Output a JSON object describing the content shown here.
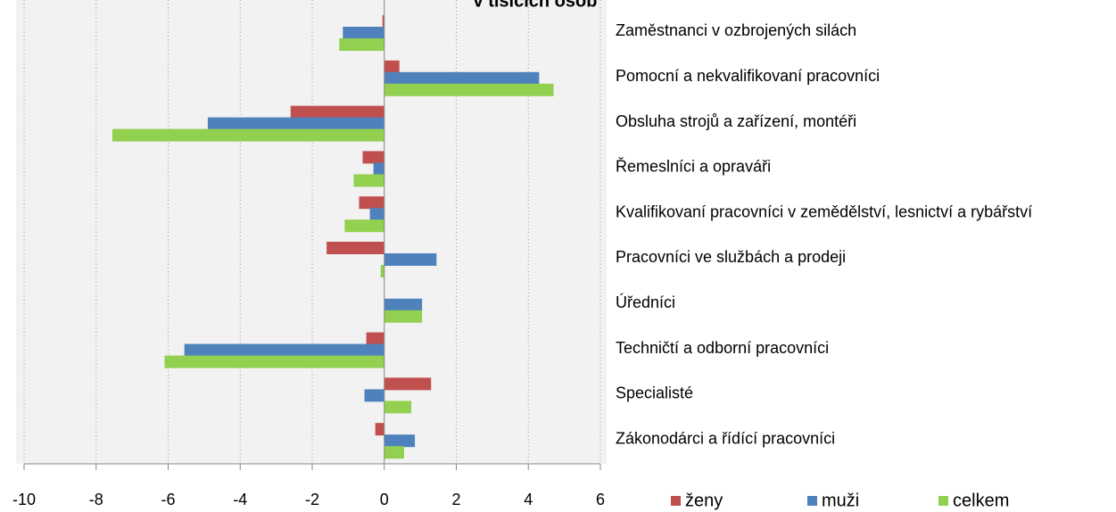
{
  "chart_data": {
    "type": "barh",
    "title": "v tisících osob",
    "categories": [
      "Zaměstnanci v ozbrojených silách",
      "Pomocní a nekvalifikovaní pracovníci",
      "Obsluha strojů a zařízení, montéři",
      "Řemeslníci a opraváři",
      "Kvalifikovaní pracovníci v zemědělství, lesnictví a rybářství",
      "Pracovníci ve službách a prodeji",
      "Úředníci",
      "Techničtí a odborní pracovníci",
      "Specialisté",
      "Zákonodárci a řídící pracovníci"
    ],
    "series": [
      {
        "name": "ženy",
        "color": "#c0504d",
        "values": [
          -0.05,
          0.42,
          -2.6,
          -0.6,
          -0.7,
          -1.6,
          0,
          -0.5,
          1.3,
          -0.25
        ]
      },
      {
        "name": "muži",
        "color": "#4f81bd",
        "values": [
          -1.15,
          4.3,
          -4.9,
          -0.3,
          -0.4,
          1.45,
          1.05,
          -5.55,
          -0.55,
          0.85
        ]
      },
      {
        "name": "celkem",
        "color": "#92d050",
        "values": [
          -1.25,
          4.7,
          -7.55,
          -0.85,
          -1.1,
          -0.1,
          1.05,
          -6.1,
          0.75,
          0.55
        ]
      }
    ],
    "xlim": [
      -10,
      6
    ],
    "xticks": [
      -10,
      -8,
      -6,
      -4,
      -2,
      0,
      2,
      4,
      6
    ],
    "grid": true,
    "legend": "bottom"
  }
}
